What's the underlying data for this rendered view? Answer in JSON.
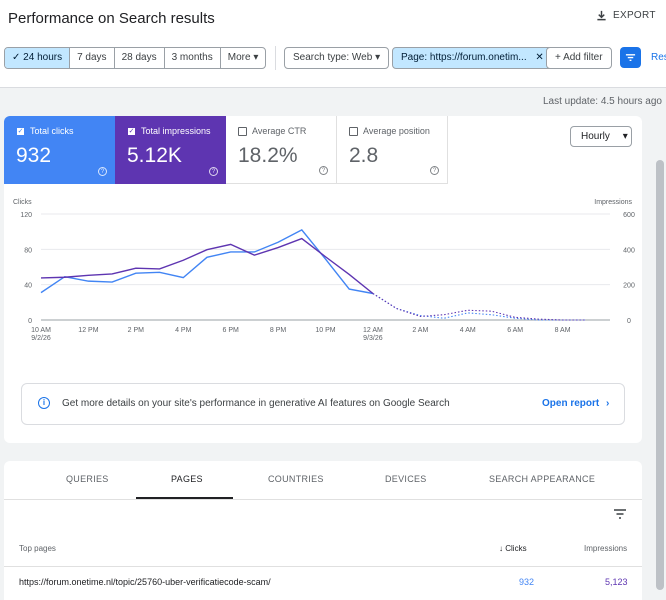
{
  "header": {
    "title": "Performance on Search results",
    "export_label": "EXPORT"
  },
  "filters": {
    "date_ranges": [
      "24 hours",
      "7 days",
      "28 days",
      "3 months",
      "More"
    ],
    "search_type": "Search type: Web",
    "page_filter": "Page: https://forum.onetim...",
    "add_filter": "Add filter",
    "reset": "Res"
  },
  "last_update": "Last update: 4.5 hours ago",
  "metrics": [
    {
      "label": "Total clicks",
      "value": "932",
      "checked": true
    },
    {
      "label": "Total impressions",
      "value": "5.12K",
      "checked": true
    },
    {
      "label": "Average CTR",
      "value": "18.2%",
      "checked": false
    },
    {
      "label": "Average position",
      "value": "2.8",
      "checked": false
    }
  ],
  "granularity": "Hourly",
  "chart_data": {
    "type": "line",
    "ylabel_left": "Clicks",
    "ylabel_right": "Impressions",
    "y_left_ticks": [
      "120",
      "80",
      "40",
      "0"
    ],
    "y_right_ticks": [
      "600",
      "400",
      "200",
      "0"
    ],
    "x_ticks": [
      {
        "l1": "10 AM",
        "l2": "9/2/26"
      },
      {
        "l1": "12 PM",
        "l2": ""
      },
      {
        "l1": "2 PM",
        "l2": ""
      },
      {
        "l1": "4 PM",
        "l2": ""
      },
      {
        "l1": "6 PM",
        "l2": ""
      },
      {
        "l1": "8 PM",
        "l2": ""
      },
      {
        "l1": "10 PM",
        "l2": ""
      },
      {
        "l1": "12 AM",
        "l2": "9/3/26"
      },
      {
        "l1": "2 AM",
        "l2": ""
      },
      {
        "l1": "4 AM",
        "l2": ""
      },
      {
        "l1": "6 AM",
        "l2": ""
      },
      {
        "l1": "8 AM",
        "l2": ""
      }
    ],
    "x_hours": [
      10,
      11,
      12,
      13,
      14,
      15,
      16,
      17,
      18,
      19,
      20,
      21,
      22,
      23,
      24,
      25,
      26,
      27,
      28,
      29,
      30,
      31,
      32,
      33
    ],
    "series": [
      {
        "name": "Clicks",
        "color": "#4285f4",
        "axis": "left",
        "values": [
          31,
          49,
          44,
          43,
          53,
          54,
          48,
          71,
          77,
          77,
          88,
          102,
          69,
          35,
          30,
          13,
          5,
          2,
          8,
          6,
          2,
          0,
          0,
          0
        ],
        "dashed_from_index": 14
      },
      {
        "name": "Impressions",
        "color": "#5e35b1",
        "axis": "right",
        "values": [
          238,
          242,
          253,
          261,
          293,
          289,
          338,
          398,
          428,
          367,
          410,
          461,
          358,
          258,
          150,
          65,
          20,
          30,
          55,
          50,
          15,
          5,
          0,
          0
        ],
        "dashed_from_index": 14
      }
    ]
  },
  "ai_banner": {
    "text": "Get more details on your site's performance in generative AI features on Google Search",
    "link": "Open report"
  },
  "tabs": [
    "QUERIES",
    "PAGES",
    "COUNTRIES",
    "DEVICES",
    "SEARCH APPEARANCE"
  ],
  "table": {
    "col_page": "Top pages",
    "col_clicks": "Clicks",
    "col_impressions": "Impressions",
    "rows": [
      {
        "page": "https://forum.onetime.nl/topic/25760-uber-verificatiecode-scam/",
        "clicks": "932",
        "impressions": "5,123"
      }
    ]
  }
}
